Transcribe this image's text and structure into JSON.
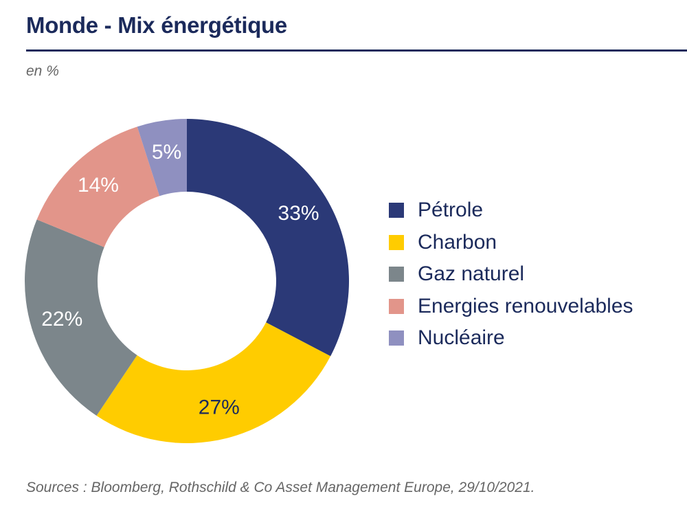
{
  "header": {
    "title": "Monde - Mix énergétique",
    "subtitle": "en %"
  },
  "footer": {
    "source": "Sources : Bloomberg, Rothschild & Co Asset Management Europe, 29/10/2021."
  },
  "chart_data": {
    "type": "pie",
    "donut": true,
    "title": "Monde - Mix énergétique",
    "subtitle": "en %",
    "legend_position": "right",
    "start": "top, clockwise",
    "series": [
      {
        "values": [
          {
            "label": "Pétrole",
            "value": 33,
            "display": "33%",
            "color": "#2b3977",
            "text_color": "#ffffff"
          },
          {
            "label": "Charbon",
            "value": 27,
            "display": "27%",
            "color": "#ffcc00",
            "text_color": "#1b2a5b"
          },
          {
            "label": "Gaz naturel",
            "value": 22,
            "display": "22%",
            "color": "#7c868b",
            "text_color": "#ffffff"
          },
          {
            "label": "Energies renouvelables",
            "value": 14,
            "display": "14%",
            "color": "#e2958a",
            "text_color": "#ffffff"
          },
          {
            "label": "Nucléaire",
            "value": 5,
            "display": "5%",
            "color": "#8f90c0",
            "text_color": "#ffffff"
          }
        ]
      }
    ]
  }
}
